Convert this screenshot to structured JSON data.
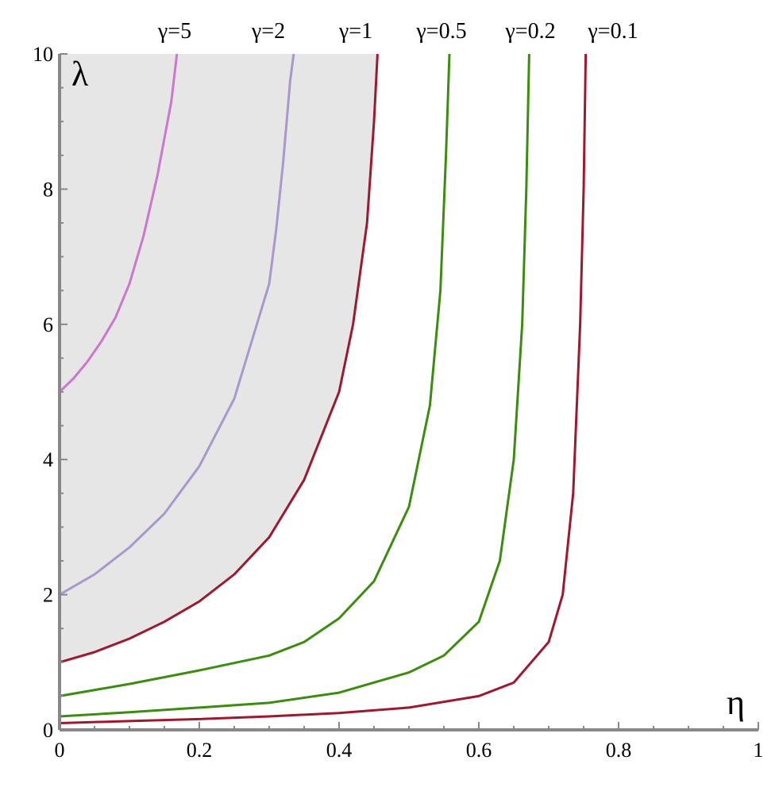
{
  "chart_data": {
    "type": "line",
    "title": "",
    "xlabel": "η",
    "ylabel": "λ",
    "xlim": [
      0,
      1
    ],
    "ylim": [
      0,
      10
    ],
    "x_ticks": [
      0,
      0.2,
      0.4,
      0.6,
      0.8,
      1
    ],
    "x_tick_labels": [
      "0",
      "0.2",
      "0.4",
      "0.6",
      "0.8",
      "1"
    ],
    "y_ticks": [
      0,
      2,
      4,
      6,
      8,
      10
    ],
    "y_tick_labels": [
      "0",
      "2",
      "4",
      "6",
      "8",
      "10"
    ],
    "grid": false,
    "legend": "none",
    "shaded_region": {
      "description_color": "#e6e6e6",
      "bounded_by_series": "γ=1"
    },
    "series": [
      {
        "name": "γ=5",
        "gamma": 5,
        "color": "#cc77cc",
        "points": [
          [
            0,
            5.0
          ],
          [
            0.02,
            5.2
          ],
          [
            0.04,
            5.45
          ],
          [
            0.06,
            5.75
          ],
          [
            0.08,
            6.1
          ],
          [
            0.1,
            6.6
          ],
          [
            0.12,
            7.3
          ],
          [
            0.14,
            8.2
          ],
          [
            0.16,
            9.3
          ],
          [
            0.168,
            10
          ]
        ]
      },
      {
        "name": "γ=2",
        "gamma": 2,
        "color": "#a898cc",
        "points": [
          [
            0,
            2.0
          ],
          [
            0.05,
            2.3
          ],
          [
            0.1,
            2.7
          ],
          [
            0.15,
            3.2
          ],
          [
            0.2,
            3.9
          ],
          [
            0.25,
            4.9
          ],
          [
            0.3,
            6.6
          ],
          [
            0.31,
            7.4
          ],
          [
            0.32,
            8.4
          ],
          [
            0.33,
            9.6
          ],
          [
            0.335,
            10
          ]
        ]
      },
      {
        "name": "γ=1",
        "gamma": 1,
        "color": "#a01830",
        "points": [
          [
            0,
            1.0
          ],
          [
            0.05,
            1.15
          ],
          [
            0.1,
            1.35
          ],
          [
            0.15,
            1.6
          ],
          [
            0.2,
            1.9
          ],
          [
            0.25,
            2.3
          ],
          [
            0.3,
            2.85
          ],
          [
            0.35,
            3.7
          ],
          [
            0.4,
            5.0
          ],
          [
            0.42,
            6.0
          ],
          [
            0.44,
            7.5
          ],
          [
            0.45,
            9.0
          ],
          [
            0.455,
            10
          ]
        ]
      },
      {
        "name": "γ=0.5",
        "gamma": 0.5,
        "color": "#3c8c10",
        "points": [
          [
            0,
            0.5
          ],
          [
            0.1,
            0.68
          ],
          [
            0.2,
            0.88
          ],
          [
            0.3,
            1.1
          ],
          [
            0.35,
            1.3
          ],
          [
            0.4,
            1.65
          ],
          [
            0.45,
            2.2
          ],
          [
            0.5,
            3.3
          ],
          [
            0.53,
            4.8
          ],
          [
            0.545,
            6.5
          ],
          [
            0.553,
            8.5
          ],
          [
            0.558,
            10
          ]
        ]
      },
      {
        "name": "γ=0.2",
        "gamma": 0.2,
        "color": "#3c8c10",
        "points": [
          [
            0,
            0.2
          ],
          [
            0.1,
            0.26
          ],
          [
            0.2,
            0.33
          ],
          [
            0.3,
            0.4
          ],
          [
            0.4,
            0.55
          ],
          [
            0.5,
            0.85
          ],
          [
            0.55,
            1.1
          ],
          [
            0.6,
            1.6
          ],
          [
            0.63,
            2.5
          ],
          [
            0.65,
            4.0
          ],
          [
            0.662,
            6.0
          ],
          [
            0.668,
            8.0
          ],
          [
            0.672,
            10
          ]
        ]
      },
      {
        "name": "γ=0.1",
        "gamma": 0.1,
        "color": "#a01830",
        "points": [
          [
            0,
            0.1
          ],
          [
            0.1,
            0.13
          ],
          [
            0.2,
            0.16
          ],
          [
            0.3,
            0.2
          ],
          [
            0.4,
            0.25
          ],
          [
            0.5,
            0.33
          ],
          [
            0.6,
            0.5
          ],
          [
            0.65,
            0.7
          ],
          [
            0.7,
            1.3
          ],
          [
            0.72,
            2.0
          ],
          [
            0.735,
            3.5
          ],
          [
            0.745,
            6.0
          ],
          [
            0.75,
            8.0
          ],
          [
            0.753,
            10
          ]
        ]
      }
    ]
  }
}
